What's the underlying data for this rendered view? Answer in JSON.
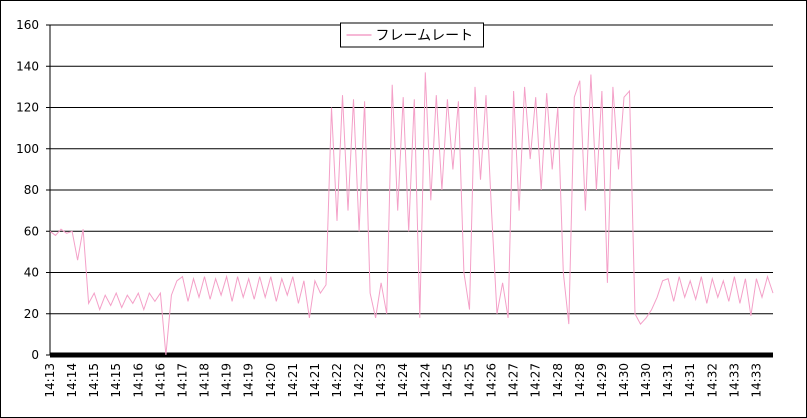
{
  "chart_data": {
    "type": "line",
    "categories": [
      "14:13",
      null,
      null,
      null,
      "14:14",
      null,
      null,
      null,
      "14:15",
      null,
      null,
      null,
      "14:15",
      null,
      null,
      null,
      "14:16",
      null,
      null,
      null,
      "14:16",
      null,
      null,
      null,
      "14:17",
      null,
      null,
      null,
      "14:18",
      null,
      null,
      null,
      "14:19",
      null,
      null,
      null,
      "14:19",
      null,
      null,
      null,
      "14:20",
      null,
      null,
      null,
      "14:21",
      null,
      null,
      null,
      "14:21",
      null,
      null,
      null,
      "14:22",
      null,
      null,
      null,
      "14:22",
      null,
      null,
      null,
      "14:23",
      null,
      null,
      null,
      "14:24",
      null,
      null,
      null,
      "14:24",
      null,
      null,
      null,
      "14:25",
      null,
      null,
      null,
      "14:25",
      null,
      null,
      null,
      "14:26",
      null,
      null,
      null,
      "14:27",
      null,
      null,
      null,
      "14:27",
      null,
      null,
      null,
      "14:28",
      null,
      null,
      null,
      "14:28",
      null,
      null,
      null,
      "14:29",
      null,
      null,
      null,
      "14:30",
      null,
      null,
      null,
      "14:30",
      null,
      null,
      null,
      "14:31",
      null,
      null,
      null,
      "14:31",
      null,
      null,
      null,
      "14:32",
      null,
      null,
      null,
      "14:33",
      null,
      null,
      null,
      "14:33",
      null,
      null,
      null
    ],
    "series": [
      {
        "name": "フレームレート",
        "color": "#f4a0c8",
        "values": [
          60,
          58,
          61,
          59,
          60,
          46,
          61,
          25,
          30,
          22,
          29,
          24,
          30,
          23,
          29,
          25,
          30,
          22,
          30,
          26,
          30,
          0,
          29,
          36,
          38,
          26,
          37,
          28,
          38,
          27,
          37,
          29,
          38,
          26,
          38,
          28,
          37,
          27,
          38,
          28,
          38,
          26,
          37,
          29,
          38,
          25,
          36,
          18,
          36,
          30,
          34,
          120,
          65,
          126,
          70,
          124,
          60,
          123,
          30,
          18,
          35,
          20,
          131,
          70,
          125,
          60,
          124,
          18,
          137,
          75,
          126,
          80,
          124,
          90,
          123,
          40,
          22,
          130,
          85,
          126,
          70,
          20,
          35,
          18,
          128,
          70,
          130,
          95,
          125,
          80,
          127,
          90,
          120,
          40,
          15,
          125,
          133,
          70,
          136,
          80,
          128,
          35,
          130,
          90,
          125,
          128,
          20,
          15,
          18,
          22,
          28,
          36,
          37,
          26,
          38,
          28,
          36,
          27,
          38,
          25,
          37,
          28,
          36,
          26,
          38,
          25,
          37,
          19,
          37,
          28,
          38,
          30
        ]
      }
    ],
    "ylim": [
      0,
      160
    ],
    "yticks": [
      0,
      20,
      40,
      60,
      80,
      100,
      120,
      140,
      160
    ],
    "grid": true,
    "legend": "top"
  }
}
